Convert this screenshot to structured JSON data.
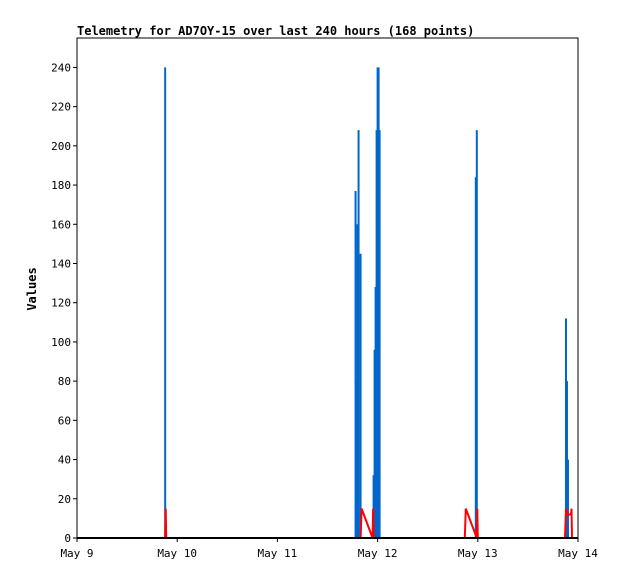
{
  "chart_data": {
    "type": "bar",
    "title": "Telemetry for AD7OY-15 over last 240 hours (168 points)",
    "xlabel": "",
    "ylabel": "Values",
    "ylim": [
      0,
      255
    ],
    "yticks": [
      0,
      20,
      40,
      60,
      80,
      100,
      120,
      140,
      160,
      180,
      200,
      220,
      240
    ],
    "xlim_days": [
      9,
      14
    ],
    "xticks": [
      {
        "day": 9,
        "label": "May 9"
      },
      {
        "day": 10,
        "label": "May 10"
      },
      {
        "day": 11,
        "label": "May 11"
      },
      {
        "day": 12,
        "label": "May 12"
      },
      {
        "day": 13,
        "label": "May 13"
      },
      {
        "day": 14,
        "label": "May 14"
      }
    ],
    "grid": false,
    "colors": {
      "blue": "#0066cc",
      "red": "#ff0000",
      "baseline": "#000000"
    },
    "series": [
      {
        "color": "blue",
        "points": [
          {
            "day": 9.88,
            "value": 240
          },
          {
            "day": 11.78,
            "value": 177
          },
          {
            "day": 11.79,
            "value": 80
          },
          {
            "day": 11.8,
            "value": 160
          },
          {
            "day": 11.81,
            "value": 208
          },
          {
            "day": 11.83,
            "value": 145
          },
          {
            "day": 11.96,
            "value": 32
          },
          {
            "day": 11.97,
            "value": 96
          },
          {
            "day": 11.98,
            "value": 128
          },
          {
            "day": 11.99,
            "value": 208
          },
          {
            "day": 12.0,
            "value": 240
          },
          {
            "day": 12.01,
            "value": 240
          },
          {
            "day": 12.02,
            "value": 208
          },
          {
            "day": 12.98,
            "value": 184
          },
          {
            "day": 12.99,
            "value": 208
          },
          {
            "day": 13.88,
            "value": 112
          },
          {
            "day": 13.89,
            "value": 80
          },
          {
            "day": 13.9,
            "value": 40
          }
        ]
      },
      {
        "color": "red",
        "line": [
          [
            9.0,
            0
          ],
          [
            9.88,
            0
          ],
          [
            9.885,
            15
          ],
          [
            9.89,
            0
          ],
          [
            11.83,
            0
          ],
          [
            11.84,
            15
          ],
          [
            11.95,
            0
          ],
          [
            11.955,
            15
          ],
          [
            11.96,
            0
          ],
          [
            12.87,
            0
          ],
          [
            12.88,
            15
          ],
          [
            12.99,
            0
          ],
          [
            12.995,
            15
          ],
          [
            13.0,
            0
          ],
          [
            13.87,
            0
          ],
          [
            13.88,
            15
          ],
          [
            13.9,
            12
          ],
          [
            13.93,
            12
          ],
          [
            13.935,
            15
          ],
          [
            13.94,
            0
          ]
        ]
      }
    ]
  }
}
